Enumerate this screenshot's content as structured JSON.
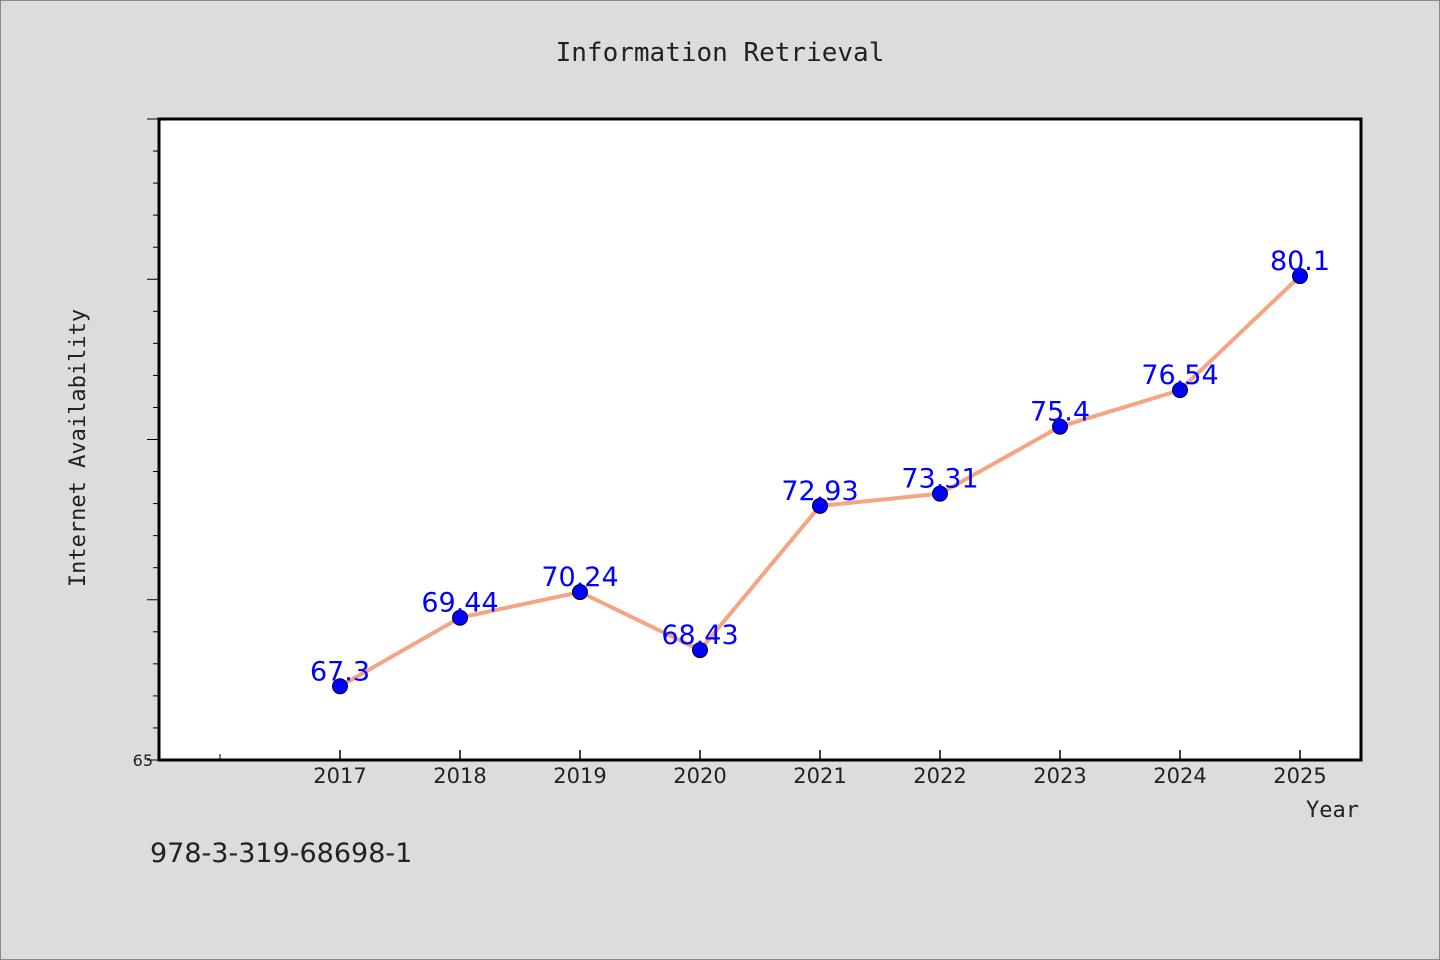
{
  "chart_data": {
    "type": "line",
    "title": "Information Retrieval",
    "xlabel": "Year",
    "ylabel": "Internet Availability",
    "categories": [
      "2017",
      "2018",
      "2019",
      "2020",
      "2021",
      "2022",
      "2023",
      "2024",
      "2025"
    ],
    "series": [
      {
        "values": [
          67.3,
          69.44,
          70.24,
          68.43,
          72.93,
          73.31,
          75.4,
          76.54,
          80.1
        ],
        "line_color": "#f4a582",
        "marker_color": "#0000ff",
        "label_color": "#0000ff"
      }
    ],
    "y_tick_labels": [
      "65"
    ],
    "ylim": [
      65,
      85
    ],
    "y_minor_tick_step": 1,
    "y_major_tick_step": 5,
    "grid": false,
    "legend": "none"
  },
  "footer": {
    "isbn": "978-3-319-68698-1"
  },
  "colors": {
    "background": "#dcdcdc",
    "plot_background": "#ffffff",
    "axis": "#000000",
    "text": "#222222"
  }
}
